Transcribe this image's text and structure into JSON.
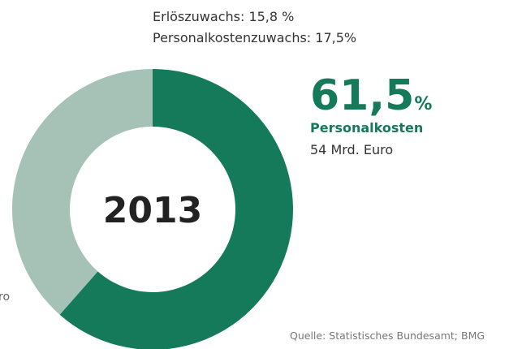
{
  "chart_data": {
    "type": "pie",
    "donut": true,
    "center_label": "2013",
    "annotations": [
      "Erlöszuwachs: 15,8 %",
      "Personalkostenzuwachs: 17,5%"
    ],
    "categories": [
      "Personalkosten",
      null
    ],
    "values": [
      61.5,
      38.5
    ],
    "value_labels": [
      "61,5%",
      null
    ],
    "details": [
      "54 Mrd. Euro",
      "ro"
    ],
    "colors": [
      "#157a5a",
      "#a6c2b6"
    ],
    "source": "Quelle: Statistisches Bundesamt; BMG"
  }
}
